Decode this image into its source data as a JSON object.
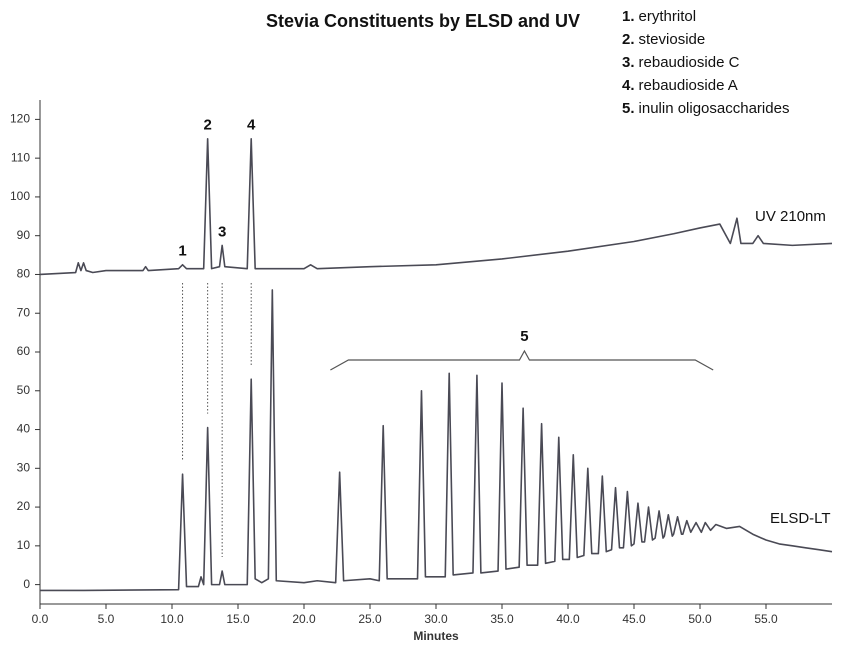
{
  "chart_data": {
    "type": "line",
    "title": "Stevia Constituents by ELSD and UV",
    "x_label": "Minutes",
    "xlim": [
      0,
      60
    ],
    "ylim": [
      -5,
      125
    ],
    "xticks": [
      {
        "value": 0,
        "label": "0.0"
      },
      {
        "value": 5,
        "label": "5.0"
      },
      {
        "value": 10,
        "label": "10.0"
      },
      {
        "value": 15,
        "label": "15.0"
      },
      {
        "value": 20,
        "label": "20.0"
      },
      {
        "value": 25,
        "label": "25.0"
      },
      {
        "value": 30,
        "label": "30.0"
      },
      {
        "value": 35,
        "label": "35.0"
      },
      {
        "value": 40,
        "label": "40.0"
      },
      {
        "value": 45,
        "label": "45.0"
      },
      {
        "value": 50,
        "label": "50.0"
      },
      {
        "value": 55,
        "label": "55.0"
      }
    ],
    "yticks": [
      0,
      10,
      20,
      30,
      40,
      50,
      60,
      70,
      80,
      90,
      100,
      110,
      120
    ],
    "legend": [
      {
        "number": "1.",
        "name": "erythritol"
      },
      {
        "number": "2.",
        "name": "stevioside"
      },
      {
        "number": "3.",
        "name": "rebaudioside C"
      },
      {
        "number": "4.",
        "name": "rebaudioside A"
      },
      {
        "number": "5.",
        "name": "inulin oligosaccharides"
      }
    ],
    "annotations": [
      {
        "text": "1",
        "x": 10.8
      },
      {
        "text": "2",
        "x": 12.7
      },
      {
        "text": "3",
        "x": 13.8
      },
      {
        "text": "4",
        "x": 16.0
      }
    ],
    "group_annotation": {
      "text": "5",
      "x": 36.7,
      "span": [
        22,
        51
      ]
    },
    "series": [
      {
        "name": "UV 210nm",
        "color": "#4a4a55",
        "x": [
          0,
          2.7,
          2.9,
          3.1,
          3.3,
          3.5,
          4,
          5,
          7.8,
          8,
          8.2,
          10.5,
          10.8,
          11.1,
          12.4,
          12.7,
          13.0,
          13.6,
          13.8,
          14.0,
          15.7,
          16.0,
          16.3,
          20,
          20.5,
          21,
          25,
          30,
          35,
          40,
          45,
          48,
          50,
          51.5,
          52.3,
          52.8,
          53.1,
          54,
          54.4,
          54.8,
          57,
          60
        ],
        "values": [
          80,
          80.5,
          83,
          81,
          83,
          81,
          80.5,
          81,
          81,
          82,
          81,
          81.5,
          82.5,
          81.5,
          81.5,
          115,
          81.5,
          82,
          87.5,
          82,
          81.5,
          115,
          81.5,
          81.5,
          82.5,
          81.5,
          82,
          82.5,
          84,
          86,
          88.5,
          90.5,
          92,
          93,
          88,
          94.5,
          88,
          88,
          90,
          88,
          87.5,
          88
        ]
      },
      {
        "name": "ELSD-LT",
        "color": "#4a4a55",
        "x": [
          0,
          3.3,
          10.5,
          10.8,
          11.1,
          12.0,
          12.2,
          12.4,
          12.7,
          13.0,
          13.6,
          13.8,
          14.0,
          15.7,
          16.0,
          16.3,
          16.8,
          17.3,
          17.6,
          17.9,
          20,
          21,
          22.4,
          22.7,
          23,
          25,
          25.7,
          26.0,
          26.3,
          28.6,
          28.9,
          29.2,
          30.7,
          31.0,
          31.3,
          32.8,
          33.1,
          33.4,
          34.7,
          35.0,
          35.3,
          36.3,
          36.6,
          36.9,
          37.7,
          38.0,
          38.3,
          39.0,
          39.3,
          39.6,
          40.1,
          40.4,
          40.7,
          41.2,
          41.5,
          41.8,
          42.3,
          42.6,
          42.9,
          43.3,
          43.6,
          43.9,
          44.2,
          44.5,
          44.8,
          45.0,
          45.3,
          45.6,
          45.8,
          46.1,
          46.4,
          46.6,
          46.9,
          47.2,
          47.3,
          47.6,
          47.9,
          48.0,
          48.3,
          48.6,
          48.7,
          49.0,
          49.3,
          49.7,
          50.1,
          50.4,
          50.8,
          51.2,
          52,
          53,
          54,
          55,
          56,
          57,
          58,
          59,
          60
        ],
        "values": [
          -1.5,
          -1.5,
          -1.3,
          28.5,
          -0.5,
          -0.5,
          2,
          0,
          40.5,
          0,
          0,
          3.5,
          0,
          0,
          53,
          1.5,
          0.5,
          1.5,
          76,
          1,
          0.5,
          1,
          0.5,
          29,
          1,
          1.5,
          1,
          41,
          1.5,
          1.5,
          50,
          2,
          2,
          54.5,
          2.5,
          3,
          54,
          3,
          3.5,
          52,
          4,
          4.5,
          45.5,
          5,
          5,
          41.5,
          5.5,
          6,
          38,
          6.5,
          6.5,
          33.5,
          7,
          7.5,
          30,
          8,
          8,
          28,
          8.5,
          9,
          25,
          9.5,
          9.5,
          24,
          10,
          10.5,
          21,
          11,
          11,
          20,
          11.5,
          12,
          19,
          12,
          12.5,
          18,
          12.5,
          13,
          17.5,
          13,
          13,
          16.5,
          13.5,
          16,
          13.5,
          16,
          14,
          15.5,
          14.5,
          15,
          13,
          11.5,
          10.5,
          10,
          9.5,
          9,
          8.5
        ]
      }
    ]
  }
}
